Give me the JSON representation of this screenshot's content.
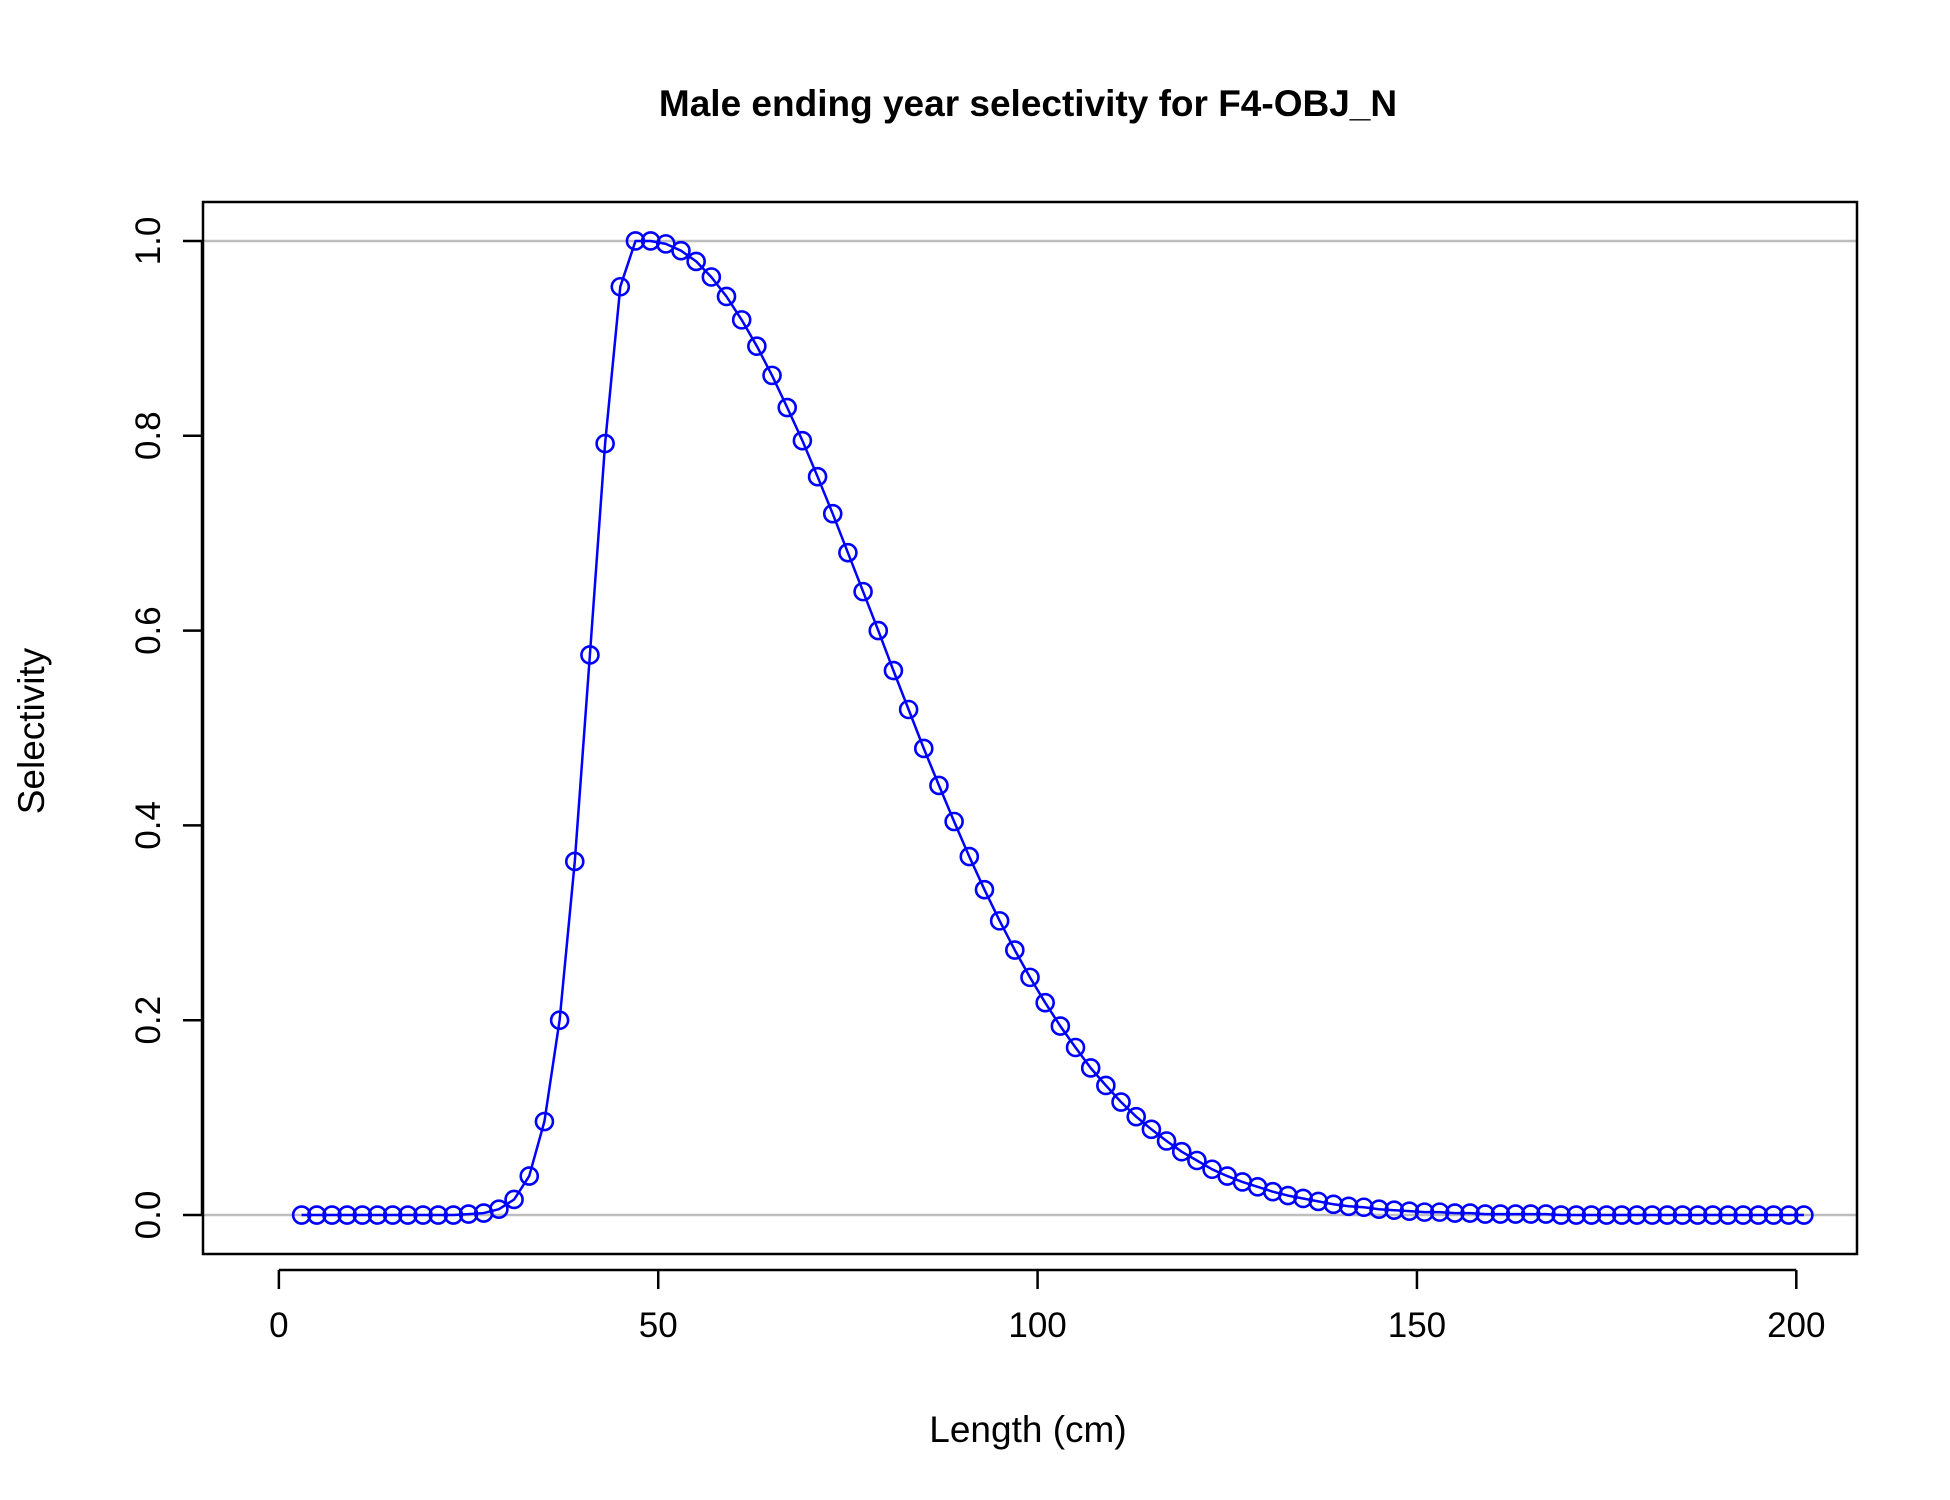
{
  "chart_data": {
    "type": "line",
    "title": "Male ending year selectivity for F4-OBJ_N",
    "xlabel": "Length (cm)",
    "ylabel": "Selectivity",
    "xlim": [
      -10,
      208
    ],
    "ylim": [
      -0.04,
      1.04
    ],
    "x_ticks": [
      0,
      50,
      100,
      150,
      200
    ],
    "x_tick_labels": [
      "0",
      "50",
      "100",
      "150",
      "200"
    ],
    "y_ticks": [
      0,
      0.2,
      0.4,
      0.6,
      0.8,
      1.0
    ],
    "y_tick_labels": [
      "0.0",
      "0.2",
      "0.4",
      "0.6",
      "0.8",
      "1.0"
    ],
    "reference_lines": [
      0,
      1
    ],
    "grid": false,
    "legend": "none",
    "colors": {
      "series": "#0000ff",
      "reference": "#bebebe",
      "frame": "#000000"
    },
    "marker": "open-circle",
    "series": [
      {
        "x": [
          3,
          5,
          7,
          9,
          11,
          13,
          15,
          17,
          19,
          21,
          23,
          25,
          27,
          29,
          31,
          33,
          35,
          37,
          39,
          41,
          43,
          45,
          47,
          49,
          51,
          53,
          55,
          57,
          59,
          61,
          63,
          65,
          67,
          69,
          71,
          73,
          75,
          77,
          79,
          81,
          83,
          85,
          87,
          89,
          91,
          93,
          95,
          97,
          99,
          101,
          103,
          105,
          107,
          109,
          111,
          113,
          115,
          117,
          119,
          121,
          123,
          125,
          127,
          129,
          131,
          133,
          135,
          137,
          139,
          141,
          143,
          145,
          147,
          149,
          151,
          153,
          155,
          157,
          159,
          161,
          163,
          165,
          167,
          169,
          171,
          173,
          175,
          177,
          179,
          181,
          183,
          185,
          187,
          189,
          191,
          193,
          195,
          197,
          199,
          201
        ],
        "y": [
          0,
          0,
          0,
          0,
          0,
          0,
          0,
          0,
          0,
          0,
          0,
          0.001,
          0.002,
          0.006,
          0.016,
          0.04,
          0.096,
          0.2,
          0.363,
          0.575,
          0.792,
          0.953,
          1.0,
          1.0,
          0.997,
          0.99,
          0.979,
          0.963,
          0.943,
          0.919,
          0.892,
          0.862,
          0.829,
          0.795,
          0.758,
          0.72,
          0.68,
          0.64,
          0.6,
          0.559,
          0.519,
          0.479,
          0.441,
          0.404,
          0.368,
          0.334,
          0.302,
          0.272,
          0.244,
          0.218,
          0.194,
          0.172,
          0.151,
          0.133,
          0.116,
          0.101,
          0.088,
          0.076,
          0.065,
          0.056,
          0.047,
          0.04,
          0.034,
          0.029,
          0.024,
          0.02,
          0.017,
          0.014,
          0.011,
          0.009,
          0.008,
          0.006,
          0.005,
          0.004,
          0.003,
          0.003,
          0.002,
          0.002,
          0.001,
          0.001,
          0.001,
          0.001,
          0.001,
          0,
          0,
          0,
          0,
          0,
          0,
          0,
          0,
          0,
          0,
          0,
          0,
          0,
          0,
          0,
          0,
          0
        ]
      }
    ]
  }
}
